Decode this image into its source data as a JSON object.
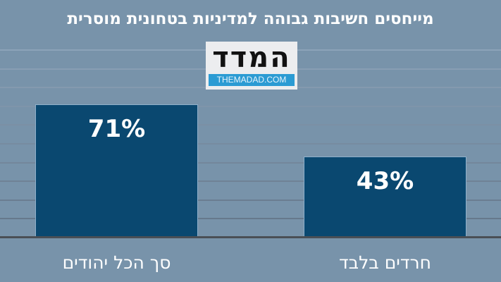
{
  "header": {
    "title": "מייחסים חשיבות גבוהה למדיניות בטחונית מוסרית"
  },
  "logo": {
    "hebrew": "המדד",
    "english": "THEMADAD.COM"
  },
  "colors": {
    "background": "#7893aa",
    "bar": "#0a4870",
    "logo_strip": "#2b9bd3",
    "baseline": "#4a4f55"
  },
  "chart_data": {
    "type": "bar",
    "title": "מייחסים חשיבות גבוהה למדיניות בטחונית מוסרית",
    "categories": [
      "סך הכל יהודים",
      "חרדים בלבד"
    ],
    "values": [
      71,
      43
    ],
    "value_labels": [
      "71%",
      "43%"
    ],
    "xlabel": "",
    "ylabel": "",
    "unit": "%",
    "grid": true,
    "legend": "none",
    "ylim": [
      0,
      100
    ]
  }
}
